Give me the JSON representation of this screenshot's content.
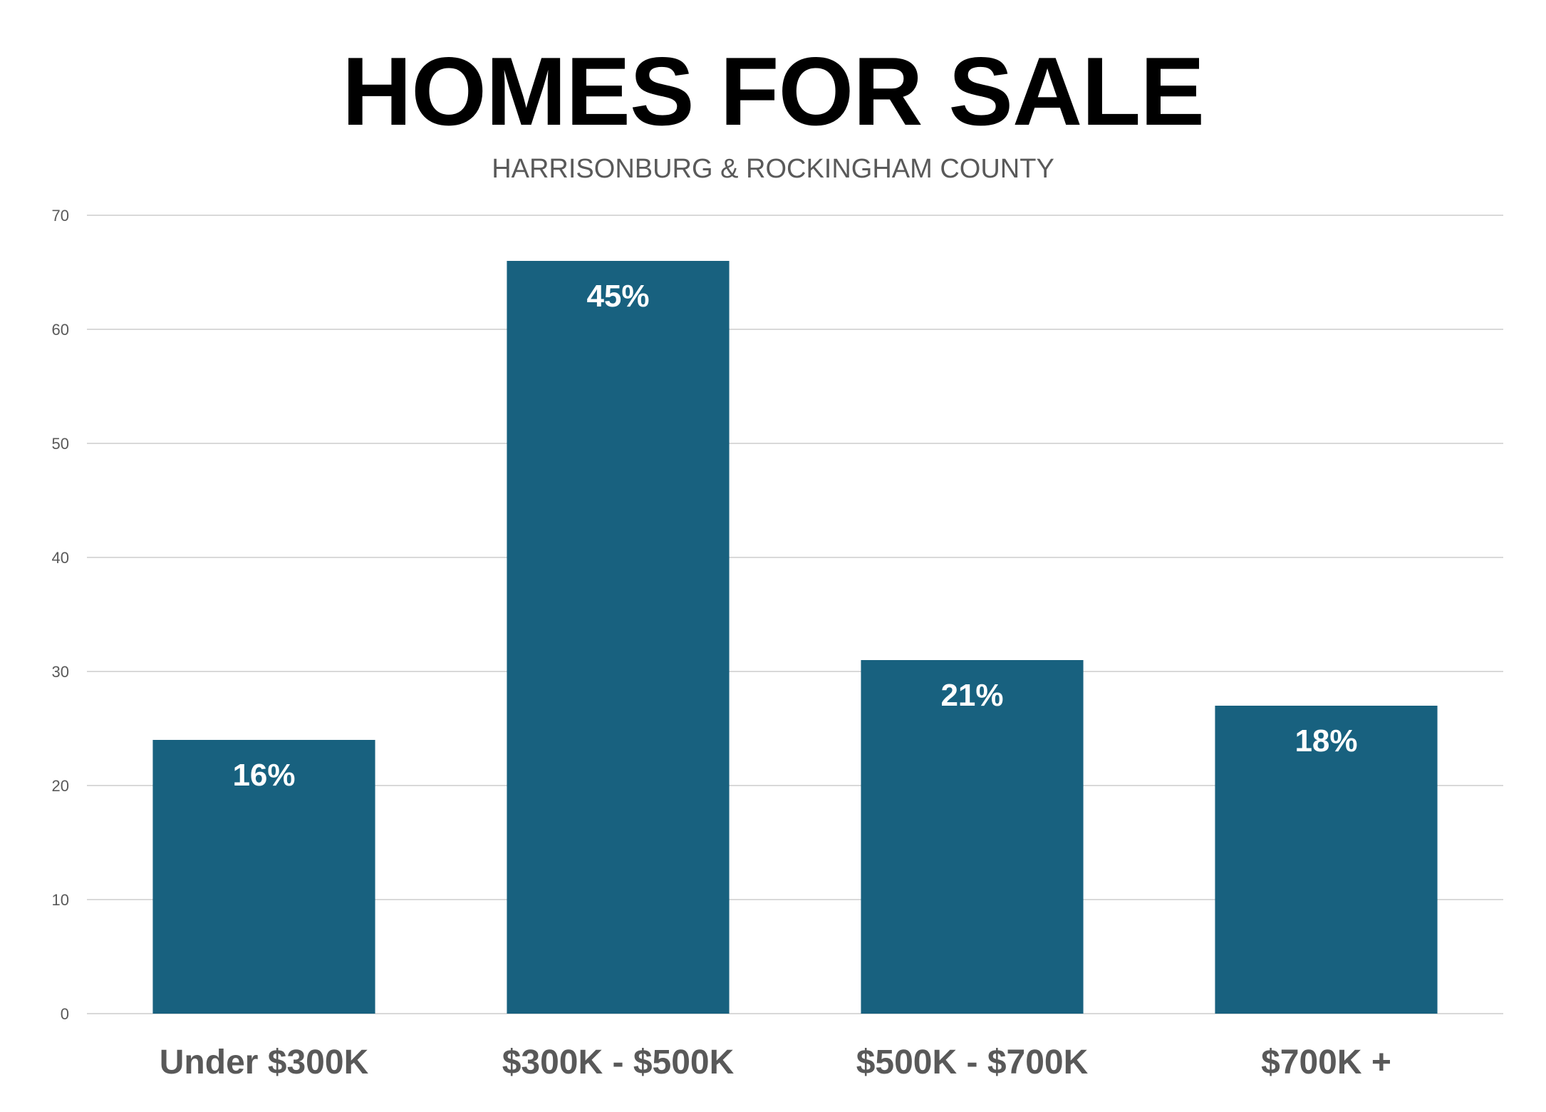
{
  "chart_data": {
    "type": "bar",
    "title": "HOMES FOR SALE",
    "subtitle": "HARRISONBURG & ROCKINGHAM COUNTY",
    "categories": [
      "Under $300K",
      "$300K - $500K",
      "$500K - $700K",
      "$700K +"
    ],
    "values": [
      24,
      66,
      31,
      27
    ],
    "data_labels": [
      "16%",
      "45%",
      "21%",
      "18%"
    ],
    "ylim": [
      0,
      70
    ],
    "yticks": [
      0,
      10,
      20,
      30,
      40,
      50,
      60,
      70
    ],
    "xlabel": "",
    "ylabel": "",
    "grid": true,
    "legend": "none",
    "bar_color": "#18617f",
    "grid_color": "#d9d9d9"
  }
}
